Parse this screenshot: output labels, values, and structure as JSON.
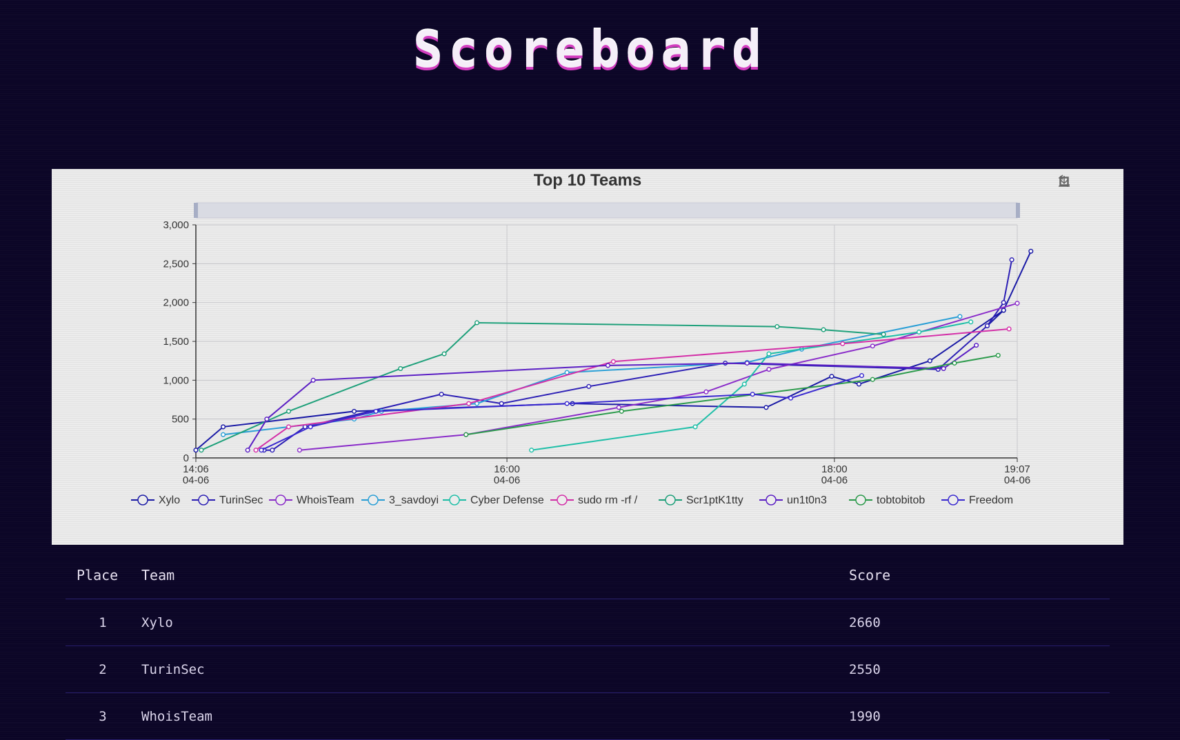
{
  "page": {
    "title": "Scoreboard"
  },
  "toolbar": {
    "icons": [
      "zoom-icon",
      "restore-icon",
      "download-icon"
    ]
  },
  "chart_data": {
    "type": "line",
    "title": "Top 10 Teams",
    "ylim": [
      0,
      3000
    ],
    "yticks": [
      "0",
      "500",
      "1,000",
      "1,500",
      "2,000",
      "2,500",
      "3,000"
    ],
    "x_range": [
      "04-06 14:06",
      "04-06 19:07"
    ],
    "xticks": [
      {
        "time": "14:06",
        "date": "04-06"
      },
      {
        "time": "16:00",
        "date": "04-06"
      },
      {
        "time": "18:00",
        "date": "04-06"
      },
      {
        "time": "19:07",
        "date": "04-06"
      }
    ],
    "grid": true,
    "legend_position": "bottom",
    "series": [
      {
        "name": "Xylo",
        "color": "#1a1aa6",
        "points": [
          [
            "14:06",
            100
          ],
          [
            "14:16",
            400
          ],
          [
            "15:04",
            600
          ],
          [
            "16:24",
            700
          ],
          [
            "17:35",
            650
          ],
          [
            "17:59",
            1050
          ],
          [
            "18:09",
            950
          ],
          [
            "18:35",
            1250
          ],
          [
            "19:02",
            1900
          ],
          [
            "18:56",
            1700
          ],
          [
            "19:02",
            1900
          ],
          [
            "19:12",
            2660
          ]
        ]
      },
      {
        "name": "TurinSec",
        "color": "#2c1fb5",
        "points": [
          [
            "14:31",
            100
          ],
          [
            "14:34",
            100
          ],
          [
            "14:46",
            400
          ],
          [
            "15:36",
            820
          ],
          [
            "15:58",
            700
          ],
          [
            "16:30",
            920
          ],
          [
            "17:20",
            1220
          ],
          [
            "18:38",
            1140
          ],
          [
            "18:56",
            1700
          ],
          [
            "19:02",
            2000
          ],
          [
            "19:05",
            2550
          ]
        ]
      },
      {
        "name": "WhoisTeam",
        "color": "#8a2cc9",
        "points": [
          [
            "14:44",
            100
          ],
          [
            "15:45",
            300
          ],
          [
            "16:41",
            650
          ],
          [
            "17:13",
            850
          ],
          [
            "17:36",
            1140
          ],
          [
            "18:14",
            1440
          ],
          [
            "19:07",
            1990
          ]
        ]
      },
      {
        "name": "3_savdoyi",
        "color": "#2a9fd6",
        "points": [
          [
            "14:16",
            300
          ],
          [
            "15:04",
            500
          ],
          [
            "15:14",
            600
          ],
          [
            "15:49",
            700
          ],
          [
            "16:22",
            1100
          ],
          [
            "17:28",
            1230
          ],
          [
            "17:48",
            1400
          ],
          [
            "18:46",
            1820
          ]
        ]
      },
      {
        "name": "Cyber Defense",
        "color": "#1fbfa8",
        "points": [
          [
            "16:09",
            100
          ],
          [
            "17:09",
            400
          ],
          [
            "17:27",
            950
          ],
          [
            "17:36",
            1340
          ],
          [
            "18:31",
            1620
          ],
          [
            "18:50",
            1750
          ]
        ]
      },
      {
        "name": "sudo rm -rf /",
        "color": "#d42fa8",
        "points": [
          [
            "14:28",
            100
          ],
          [
            "14:40",
            400
          ],
          [
            "15:46",
            700
          ],
          [
            "16:39",
            1240
          ],
          [
            "18:03",
            1470
          ],
          [
            "19:04",
            1660
          ]
        ]
      },
      {
        "name": "Scr1ptK1tty",
        "color": "#1ea07a",
        "points": [
          [
            "14:08",
            100
          ],
          [
            "14:40",
            600
          ],
          [
            "15:21",
            1150
          ],
          [
            "15:37",
            1340
          ],
          [
            "15:49",
            1740
          ],
          [
            "17:39",
            1690
          ],
          [
            "17:56",
            1650
          ],
          [
            "18:18",
            1590
          ]
        ]
      },
      {
        "name": "un1t0n3",
        "color": "#5b1fc4",
        "points": [
          [
            "14:25",
            100
          ],
          [
            "14:32",
            500
          ],
          [
            "14:49",
            1000
          ],
          [
            "16:37",
            1190
          ],
          [
            "17:28",
            1220
          ],
          [
            "18:40",
            1150
          ],
          [
            "18:52",
            1450
          ]
        ]
      },
      {
        "name": "tobtobitob",
        "color": "#2b9a4b",
        "points": [
          [
            "15:45",
            300
          ],
          [
            "16:42",
            600
          ],
          [
            "18:14",
            1010
          ],
          [
            "18:44",
            1220
          ],
          [
            "19:00",
            1320
          ]
        ]
      },
      {
        "name": "Freedom",
        "color": "#3a2ad0",
        "points": [
          [
            "14:30",
            100
          ],
          [
            "14:48",
            400
          ],
          [
            "15:12",
            600
          ],
          [
            "16:22",
            700
          ],
          [
            "17:30",
            820
          ],
          [
            "17:44",
            770
          ],
          [
            "18:10",
            1060
          ]
        ]
      }
    ]
  },
  "table": {
    "headers": [
      "Place",
      "Team",
      "Score"
    ],
    "rows": [
      [
        "1",
        "Xylo",
        "2660"
      ],
      [
        "2",
        "TurinSec",
        "2550"
      ],
      [
        "3",
        "WhoisTeam",
        "1990"
      ]
    ]
  }
}
